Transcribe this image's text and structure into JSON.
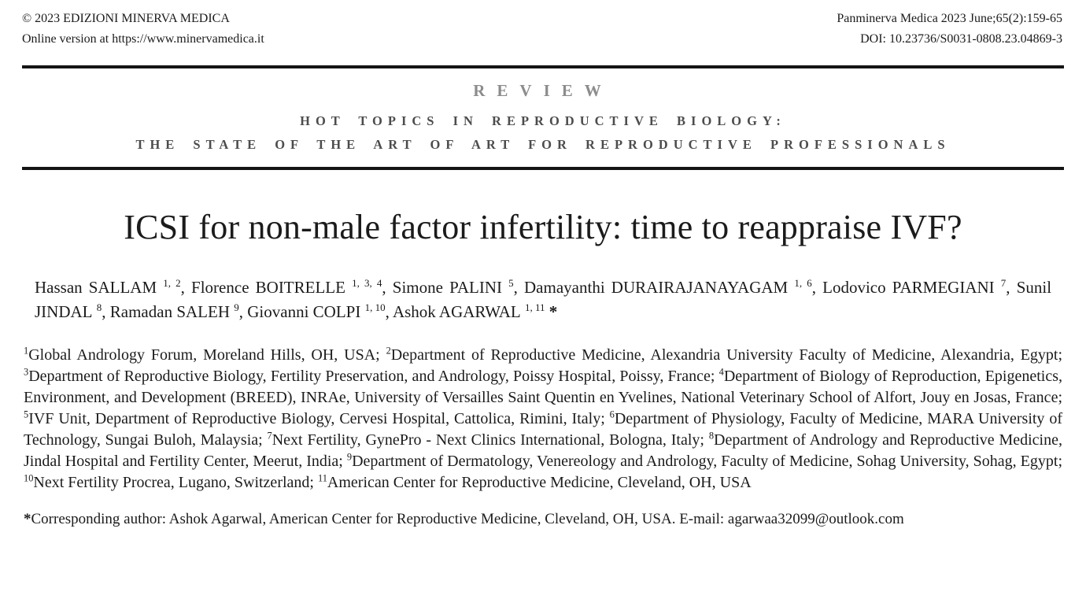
{
  "header": {
    "copyright": "© 2023 EDIZIONI MINERVA MEDICA",
    "online_version": "Online version at https://www.minervamedica.it",
    "journal_ref": "Panminerva Medica 2023 June;65(2):159-65",
    "doi": "DOI: 10.23736/S0031-0808.23.04869-3"
  },
  "section": {
    "review_label": "REVIEW",
    "topic_line1": "HOT TOPICS IN REPRODUCTIVE BIOLOGY:",
    "topic_line2": "THE STATE OF THE ART OF ART FOR REPRODUCTIVE PROFESSIONALS"
  },
  "article": {
    "title": "ICSI for non-male factor infertility: time to reappraise IVF?",
    "authors": [
      {
        "name": "Hassan SALLAM",
        "sups": "1, 2"
      },
      {
        "name": "Florence BOITRELLE",
        "sups": "1, 3, 4"
      },
      {
        "name": "Simone PALINI",
        "sups": "5"
      },
      {
        "name": "Damayanthi DURAIRAJANAYAGAM",
        "sups": "1, 6"
      },
      {
        "name": "Lodovico PARMEGIANI",
        "sups": "7"
      },
      {
        "name": "Sunil JINDAL",
        "sups": "8"
      },
      {
        "name": "Ramadan SALEH",
        "sups": "9"
      },
      {
        "name": "Giovanni COLPI",
        "sups": "1, 10"
      },
      {
        "name": "Ashok AGARWAL",
        "sups": "1, 11",
        "marker": "*"
      }
    ],
    "affiliations": [
      {
        "num": "1",
        "text": "Global Andrology Forum, Moreland Hills, OH, USA"
      },
      {
        "num": "2",
        "text": "Department of Reproductive Medicine, Alexandria University Faculty of Medicine, Alexandria, Egypt"
      },
      {
        "num": "3",
        "text": "Department of Reproductive Biology, Fertility Preservation, and Andrology, Poissy Hospital, Poissy, France"
      },
      {
        "num": "4",
        "text": "Department of Biology of Reproduction, Epigenetics, Environment, and Development (BREED), INRAe, University of Versailles Saint Quentin en Yvelines, National Veterinary School of Alfort, Jouy en Josas, France"
      },
      {
        "num": "5",
        "text": "IVF Unit, Department of Reproductive Biology, Cervesi Hospital, Cattolica, Rimini, Italy"
      },
      {
        "num": "6",
        "text": "Department of Physiology, Faculty of Medicine, MARA University of Technology, Sungai Buloh, Malaysia"
      },
      {
        "num": "7",
        "text": "Next Fertility, GynePro - Next Clinics International, Bologna, Italy"
      },
      {
        "num": "8",
        "text": "Department of Andrology and Reproductive Medicine, Jindal Hospital and Fertility Center, Meerut, India"
      },
      {
        "num": "9",
        "text": "Department of Dermatology, Venereology and Andrology, Faculty of Medicine, Sohag University, Sohag, Egypt"
      },
      {
        "num": "10",
        "text": "Next Fertility Procrea, Lugano, Switzerland"
      },
      {
        "num": "11",
        "text": "American Center for Reproductive Medicine, Cleveland, OH, USA"
      }
    ],
    "corresponding": {
      "marker": "*",
      "label": "Corresponding author:",
      "text": " Ashok Agarwal, American Center for Reproductive Medicine, Cleveland, OH, USA. E-mail: agarwaa32099@outlook.com"
    }
  },
  "colors": {
    "text": "#1b1b1b",
    "review_gray": "#8c8c8c",
    "topics_gray": "#4c4c4c",
    "rule": "#151515"
  }
}
